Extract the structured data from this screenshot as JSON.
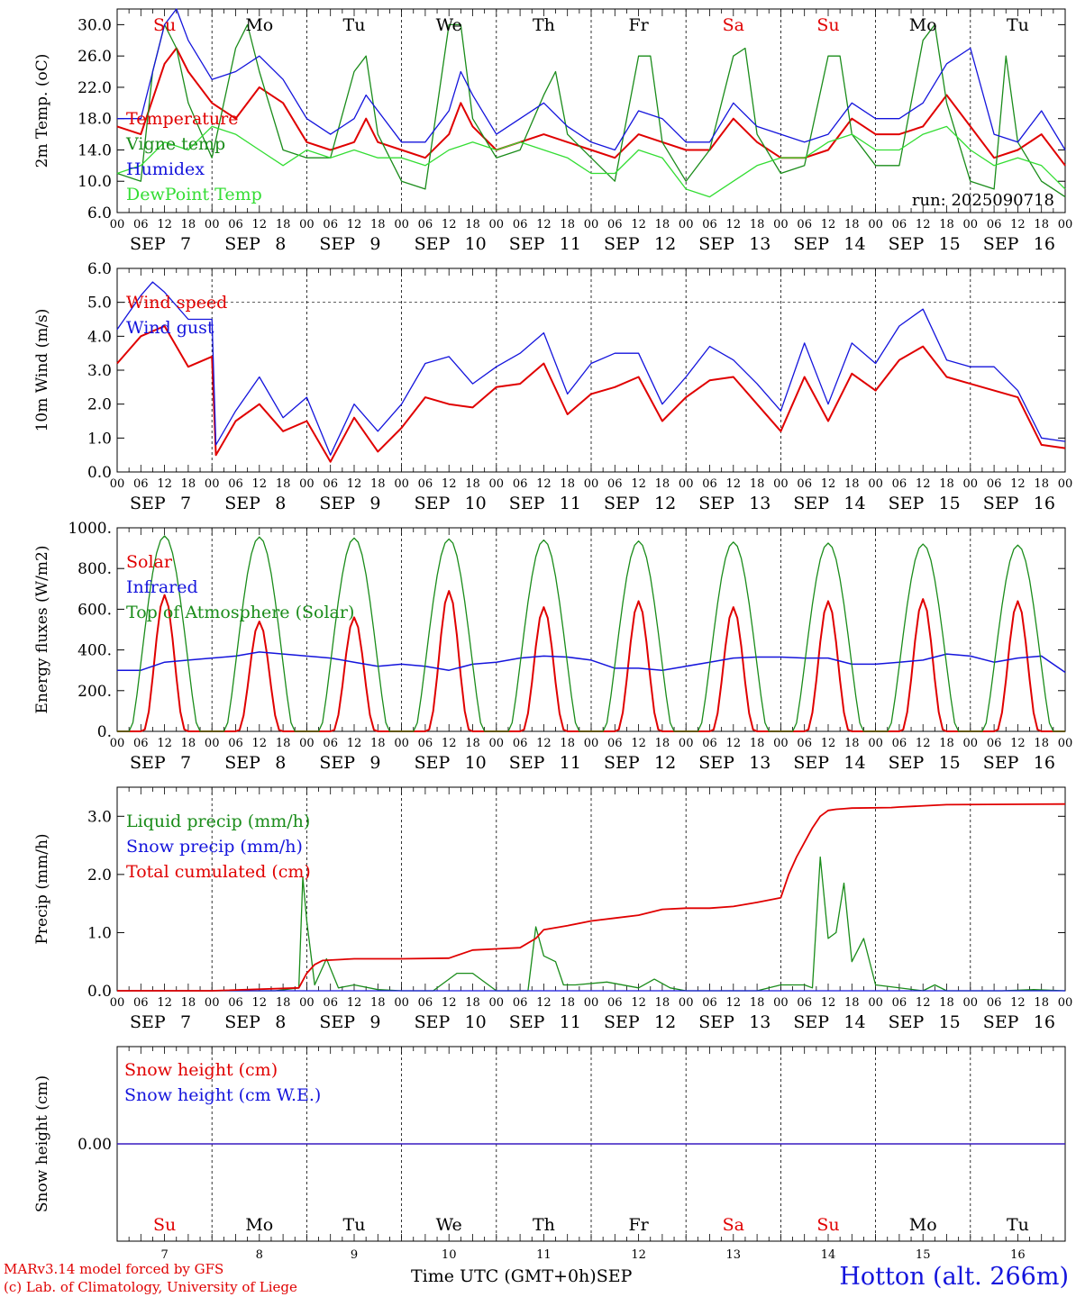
{
  "colors": {
    "red": "#e00000",
    "green": "#1a8c1a",
    "blue": "#1414dc",
    "lime": "#33dd33",
    "black": "#000000"
  },
  "days": [
    {
      "dow": "Su",
      "day": 7,
      "weekend": true
    },
    {
      "dow": "Mo",
      "day": 8,
      "weekend": false
    },
    {
      "dow": "Tu",
      "day": 9,
      "weekend": false
    },
    {
      "dow": "We",
      "day": 10,
      "weekend": false
    },
    {
      "dow": "Th",
      "day": 11,
      "weekend": false
    },
    {
      "dow": "Fr",
      "day": 12,
      "weekend": false
    },
    {
      "dow": "Sa",
      "day": 13,
      "weekend": true
    },
    {
      "dow": "Su",
      "day": 14,
      "weekend": true
    },
    {
      "dow": "Mo",
      "day": 15,
      "weekend": false
    },
    {
      "dow": "Tu",
      "day": 16,
      "weekend": false
    }
  ],
  "month": "SEP",
  "hour_ticks": [
    "00",
    "06",
    "12",
    "18"
  ],
  "footer": {
    "model": "MARv3.14 model forced by GFS",
    "lab": "(c) Lab. of Climatology, University of Liege",
    "time_label": "Time UTC (GMT+0h)",
    "month_label": "SEP",
    "station": "Hotton (alt. 266m)"
  },
  "chart_data": [
    {
      "type": "line",
      "ylabel": "2m Temp. (oC)",
      "ylim": [
        6,
        32
      ],
      "yticks": [
        "6.0",
        "10.0",
        "14.0",
        "18.0",
        "22.0",
        "26.0",
        "30.0"
      ],
      "ytick_values": [
        6,
        10,
        14,
        18,
        22,
        26,
        30
      ],
      "run_label": "run: 2025090718",
      "x_unit": "hours since SEP 7 00 UTC",
      "series": [
        {
          "name": "Temperature",
          "color": "red",
          "width": 2,
          "x": [
            0,
            6,
            12,
            15,
            18,
            24,
            30,
            36,
            42,
            48,
            54,
            60,
            63,
            66,
            72,
            78,
            84,
            87,
            90,
            96,
            102,
            108,
            114,
            120,
            126,
            132,
            138,
            144,
            150,
            156,
            162,
            168,
            174,
            180,
            186,
            192,
            198,
            204,
            210,
            216,
            222,
            228,
            234,
            240
          ],
          "y": [
            17,
            16,
            25,
            27,
            24,
            20,
            18,
            22,
            20,
            15,
            14,
            15,
            18,
            15,
            14,
            13,
            16,
            20,
            17,
            14,
            15,
            16,
            15,
            14,
            13,
            16,
            15,
            14,
            14,
            18,
            15,
            13,
            13,
            14,
            18,
            16,
            16,
            17,
            21,
            17,
            13,
            14,
            16,
            12
          ]
        },
        {
          "name": "Vigne temp",
          "color": "green",
          "width": 1.3,
          "x": [
            0,
            6,
            9,
            12,
            15,
            18,
            24,
            30,
            33,
            36,
            42,
            48,
            54,
            60,
            63,
            66,
            72,
            78,
            84,
            87,
            90,
            96,
            102,
            108,
            111,
            114,
            120,
            126,
            132,
            135,
            138,
            144,
            150,
            156,
            159,
            162,
            168,
            174,
            180,
            183,
            186,
            192,
            198,
            204,
            207,
            210,
            216,
            222,
            225,
            228,
            234,
            240
          ],
          "y": [
            11,
            10,
            24,
            30,
            27,
            20,
            13,
            27,
            30,
            24,
            14,
            13,
            13,
            24,
            26,
            16,
            10,
            9,
            30,
            30,
            18,
            13,
            14,
            21,
            24,
            16,
            13,
            10,
            26,
            26,
            15,
            10,
            14,
            26,
            27,
            16,
            11,
            12,
            26,
            26,
            16,
            12,
            12,
            28,
            30,
            20,
            10,
            9,
            26,
            15,
            10,
            8
          ]
        },
        {
          "name": "Humidex",
          "color": "blue",
          "width": 1.3,
          "x": [
            0,
            6,
            12,
            15,
            18,
            24,
            30,
            36,
            42,
            48,
            54,
            60,
            63,
            66,
            72,
            78,
            84,
            87,
            90,
            96,
            102,
            108,
            114,
            120,
            126,
            132,
            138,
            144,
            150,
            156,
            162,
            168,
            174,
            180,
            186,
            192,
            198,
            204,
            210,
            216,
            222,
            228,
            234,
            240
          ],
          "y": [
            18,
            18,
            30,
            32,
            28,
            23,
            24,
            26,
            23,
            18,
            16,
            18,
            21,
            19,
            15,
            15,
            19,
            24,
            21,
            16,
            18,
            20,
            17,
            15,
            14,
            19,
            18,
            15,
            15,
            20,
            17,
            16,
            15,
            16,
            20,
            18,
            18,
            20,
            25,
            27,
            16,
            15,
            19,
            14
          ]
        },
        {
          "name": "DewPoint Temp",
          "color": "lime",
          "width": 1.3,
          "x": [
            0,
            6,
            12,
            18,
            24,
            30,
            36,
            42,
            48,
            54,
            60,
            66,
            72,
            78,
            84,
            90,
            96,
            102,
            108,
            114,
            120,
            126,
            132,
            138,
            144,
            150,
            156,
            162,
            168,
            174,
            180,
            186,
            192,
            198,
            204,
            210,
            216,
            222,
            228,
            234,
            240
          ],
          "y": [
            11,
            12,
            15,
            14,
            17,
            16,
            14,
            12,
            14,
            13,
            14,
            13,
            13,
            12,
            14,
            15,
            14,
            15,
            14,
            13,
            11,
            11,
            14,
            13,
            9,
            8,
            10,
            12,
            13,
            13,
            15,
            16,
            14,
            14,
            16,
            17,
            14,
            12,
            13,
            12,
            9
          ]
        }
      ]
    },
    {
      "type": "line",
      "ylabel": "10m Wind (m/s)",
      "ylim": [
        0,
        6
      ],
      "yticks": [
        "0.0",
        "1.0",
        "2.0",
        "3.0",
        "4.0",
        "5.0",
        "6.0"
      ],
      "ytick_values": [
        0,
        1,
        2,
        3,
        4,
        5,
        6
      ],
      "ref_line": 5,
      "series": [
        {
          "name": "Wind speed",
          "color": "red",
          "width": 2,
          "x": [
            0,
            6,
            12,
            18,
            24,
            25,
            30,
            36,
            42,
            48,
            54,
            60,
            66,
            72,
            78,
            84,
            90,
            96,
            102,
            108,
            114,
            120,
            126,
            132,
            138,
            144,
            150,
            156,
            162,
            168,
            174,
            180,
            186,
            192,
            198,
            204,
            210,
            216,
            222,
            228,
            234,
            240
          ],
          "y": [
            3.2,
            4,
            4.3,
            3.1,
            3.4,
            0.5,
            1.5,
            2,
            1.2,
            1.5,
            0.3,
            1.6,
            0.6,
            1.3,
            2.2,
            2,
            1.9,
            2.5,
            2.6,
            3.2,
            1.7,
            2.3,
            2.5,
            2.8,
            1.5,
            2.2,
            2.7,
            2.8,
            2.0,
            1.2,
            2.8,
            1.5,
            2.9,
            2.4,
            3.3,
            3.7,
            2.8,
            2.6,
            2.4,
            2.2,
            0.8,
            0.7
          ]
        },
        {
          "name": "Wind gust",
          "color": "blue",
          "width": 1.3,
          "x": [
            0,
            6,
            9,
            12,
            18,
            24,
            25,
            30,
            36,
            42,
            48,
            54,
            60,
            66,
            72,
            78,
            84,
            90,
            96,
            102,
            108,
            114,
            120,
            126,
            132,
            138,
            144,
            150,
            156,
            162,
            168,
            174,
            180,
            186,
            192,
            198,
            204,
            210,
            216,
            222,
            228,
            234,
            240
          ],
          "y": [
            4.2,
            5.2,
            5.6,
            5.3,
            4.5,
            4.5,
            0.8,
            1.8,
            2.8,
            1.6,
            2.2,
            0.5,
            2.0,
            1.2,
            2.0,
            3.2,
            3.4,
            2.6,
            3.1,
            3.5,
            4.1,
            2.3,
            3.2,
            3.5,
            3.5,
            2.0,
            2.8,
            3.7,
            3.3,
            2.6,
            1.8,
            3.8,
            2.0,
            3.8,
            3.2,
            4.3,
            4.8,
            3.3,
            3.1,
            3.1,
            2.4,
            1.0,
            0.9
          ]
        }
      ]
    },
    {
      "type": "line",
      "ylabel": "Energy fluxes (W/m2)",
      "ylim": [
        0,
        1000
      ],
      "yticks": [
        "0.",
        "200.",
        "400.",
        "600.",
        "800.",
        "1000."
      ],
      "ytick_values": [
        0,
        200,
        400,
        600,
        800,
        1000
      ],
      "toa_peaks": [
        960,
        955,
        950,
        945,
        940,
        935,
        930,
        925,
        920,
        915
      ],
      "solar_peaks": [
        670,
        540,
        560,
        690,
        610,
        640,
        610,
        640,
        650,
        640
      ],
      "series": [
        {
          "name": "Solar",
          "color": "red",
          "width": 2
        },
        {
          "name": "Infrared",
          "color": "blue",
          "width": 1.5,
          "x": [
            0,
            6,
            12,
            18,
            24,
            30,
            36,
            42,
            48,
            54,
            60,
            66,
            72,
            78,
            84,
            90,
            96,
            102,
            108,
            114,
            120,
            126,
            132,
            138,
            144,
            150,
            156,
            162,
            168,
            174,
            180,
            186,
            192,
            198,
            204,
            210,
            216,
            222,
            228,
            234,
            240
          ],
          "y": [
            300,
            300,
            340,
            350,
            360,
            370,
            390,
            380,
            370,
            360,
            340,
            320,
            330,
            320,
            300,
            330,
            340,
            360,
            370,
            365,
            350,
            310,
            310,
            300,
            320,
            340,
            360,
            365,
            365,
            360,
            360,
            330,
            330,
            340,
            350,
            380,
            370,
            340,
            360,
            370,
            290
          ]
        },
        {
          "name": "Top of Atmosphere (Solar)",
          "color": "green",
          "width": 1.3
        }
      ]
    },
    {
      "type": "line",
      "ylabel": "Precip (mm/h)",
      "ylim": [
        0,
        3.5
      ],
      "yticks": [
        "0.0",
        "1.0",
        "2.0",
        "3.0"
      ],
      "ytick_values": [
        0,
        1,
        2,
        3
      ],
      "series": [
        {
          "name": "Liquid precip (mm/h)",
          "color": "green",
          "width": 1.3,
          "x": [
            0,
            20,
            40,
            46,
            47,
            48,
            50,
            53,
            56,
            60,
            66,
            72,
            80,
            86,
            90,
            96,
            104,
            106,
            108,
            111,
            113,
            116,
            124,
            132,
            136,
            140,
            144,
            150,
            156,
            162,
            168,
            174,
            176,
            178,
            180,
            182,
            184,
            186,
            189,
            192,
            204,
            207,
            210,
            216,
            224,
            232,
            240
          ],
          "y": [
            0,
            0,
            0,
            0.05,
            1.95,
            1.2,
            0.1,
            0.55,
            0.05,
            0.1,
            0.02,
            0,
            0,
            0.3,
            0.3,
            0,
            0,
            1.1,
            0.6,
            0.5,
            0.1,
            0.1,
            0.15,
            0.05,
            0.2,
            0.05,
            0,
            0,
            0,
            0,
            0.1,
            0.1,
            0.05,
            2.3,
            0.9,
            1.0,
            1.85,
            0.5,
            0.9,
            0.1,
            0,
            0.1,
            0,
            0,
            0,
            0.02,
            0
          ]
        },
        {
          "name": "Snow precip (mm/h)",
          "color": "blue",
          "width": 1.3,
          "x": [
            0,
            240
          ],
          "y": [
            0,
            0
          ]
        },
        {
          "name": "Total cumulated (cm)",
          "color": "red",
          "width": 1.8,
          "x": [
            0,
            24,
            46,
            48,
            50,
            52,
            60,
            72,
            84,
            90,
            96,
            102,
            106,
            108,
            114,
            120,
            126,
            132,
            138,
            144,
            150,
            156,
            162,
            168,
            170,
            172,
            174,
            176,
            178,
            180,
            182,
            184,
            186,
            196,
            198,
            210,
            240
          ],
          "y": [
            0,
            0,
            0.05,
            0.3,
            0.45,
            0.52,
            0.55,
            0.55,
            0.56,
            0.7,
            0.72,
            0.74,
            0.9,
            1.05,
            1.12,
            1.2,
            1.25,
            1.3,
            1.4,
            1.42,
            1.42,
            1.45,
            1.52,
            1.6,
            2.0,
            2.3,
            2.55,
            2.8,
            3.0,
            3.1,
            3.12,
            3.13,
            3.14,
            3.15,
            3.16,
            3.2,
            3.21
          ]
        }
      ]
    },
    {
      "type": "line",
      "ylabel": "Snow height (cm)",
      "ylim": [
        -1,
        1
      ],
      "yticks": [
        "0.00"
      ],
      "ytick_values": [
        0
      ],
      "series": [
        {
          "name": "Snow height (cm)",
          "color": "red",
          "width": 1.3,
          "x": [
            0,
            240
          ],
          "y": [
            0,
            0
          ]
        },
        {
          "name": "Snow height (cm W.E.)",
          "color": "blue",
          "width": 1.3,
          "x": [
            0,
            240
          ],
          "y": [
            0,
            0
          ]
        }
      ]
    }
  ]
}
